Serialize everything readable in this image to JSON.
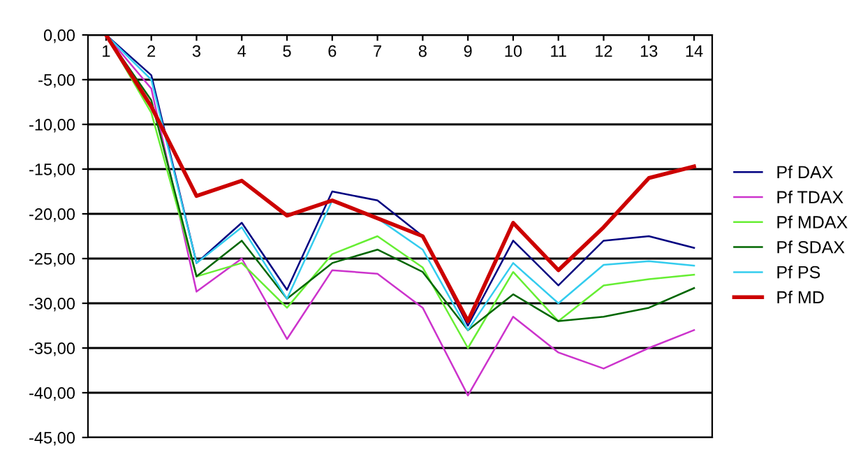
{
  "chart_data": {
    "type": "line",
    "categories": [
      "1",
      "2",
      "3",
      "4",
      "5",
      "6",
      "7",
      "8",
      "9",
      "10",
      "11",
      "12",
      "13",
      "14"
    ],
    "series": [
      {
        "name": "Pf DAX",
        "color": "#000080",
        "values": [
          0,
          -4.5,
          -25.5,
          -21,
          -28.5,
          -17.5,
          -18.5,
          -22.5,
          -32.5,
          -23,
          -28,
          -23,
          -22.5,
          -23.8
        ]
      },
      {
        "name": "Pf TDAX",
        "color": "#cc33cc",
        "values": [
          0,
          -6,
          -28.7,
          -25,
          -34,
          -26.3,
          -26.7,
          -30.5,
          -40.3,
          -31.5,
          -35.5,
          -37.3,
          -35,
          -33
        ]
      },
      {
        "name": "Pf MDAX",
        "color": "#66ee33",
        "values": [
          0,
          -8.7,
          -27,
          -25.5,
          -30.5,
          -24.5,
          -22.5,
          -26,
          -35,
          -26.5,
          -32,
          -28,
          -27.3,
          -26.8
        ]
      },
      {
        "name": "Pf SDAX",
        "color": "#006600",
        "values": [
          0,
          -7.3,
          -27,
          -23,
          -29.5,
          -25.5,
          -24,
          -26.5,
          -33,
          -29,
          -32,
          -31.5,
          -30.5,
          -28.3
        ]
      },
      {
        "name": "Pf PS",
        "color": "#33ccee",
        "values": [
          0,
          -5,
          -25.5,
          -21.5,
          -29.5,
          -18.5,
          -20.5,
          -24,
          -33,
          -25.5,
          -30,
          -25.7,
          -25.3,
          -25.8
        ]
      },
      {
        "name": "Pf MD",
        "color": "#cc0000",
        "values": [
          0,
          -8,
          -18,
          -16.3,
          -20.2,
          -18.5,
          -20.5,
          -22.5,
          -32,
          -21,
          -26.3,
          -21.5,
          -16,
          -14.7
        ]
      }
    ],
    "ylim": [
      -45,
      0
    ],
    "yticks": [
      {
        "value": 0,
        "label": "0,00"
      },
      {
        "value": -5,
        "label": "-5,00"
      },
      {
        "value": -10,
        "label": "-10,00"
      },
      {
        "value": -15,
        "label": "-15,00"
      },
      {
        "value": -20,
        "label": "-20,00"
      },
      {
        "value": -25,
        "label": "-25,00"
      },
      {
        "value": -30,
        "label": "-30,00"
      },
      {
        "value": -35,
        "label": "-35,00"
      },
      {
        "value": -40,
        "label": "-40,00"
      },
      {
        "value": -45,
        "label": "-45,00"
      }
    ],
    "grid": "y",
    "legend": "right",
    "marker": "none",
    "line_style": "solid"
  }
}
